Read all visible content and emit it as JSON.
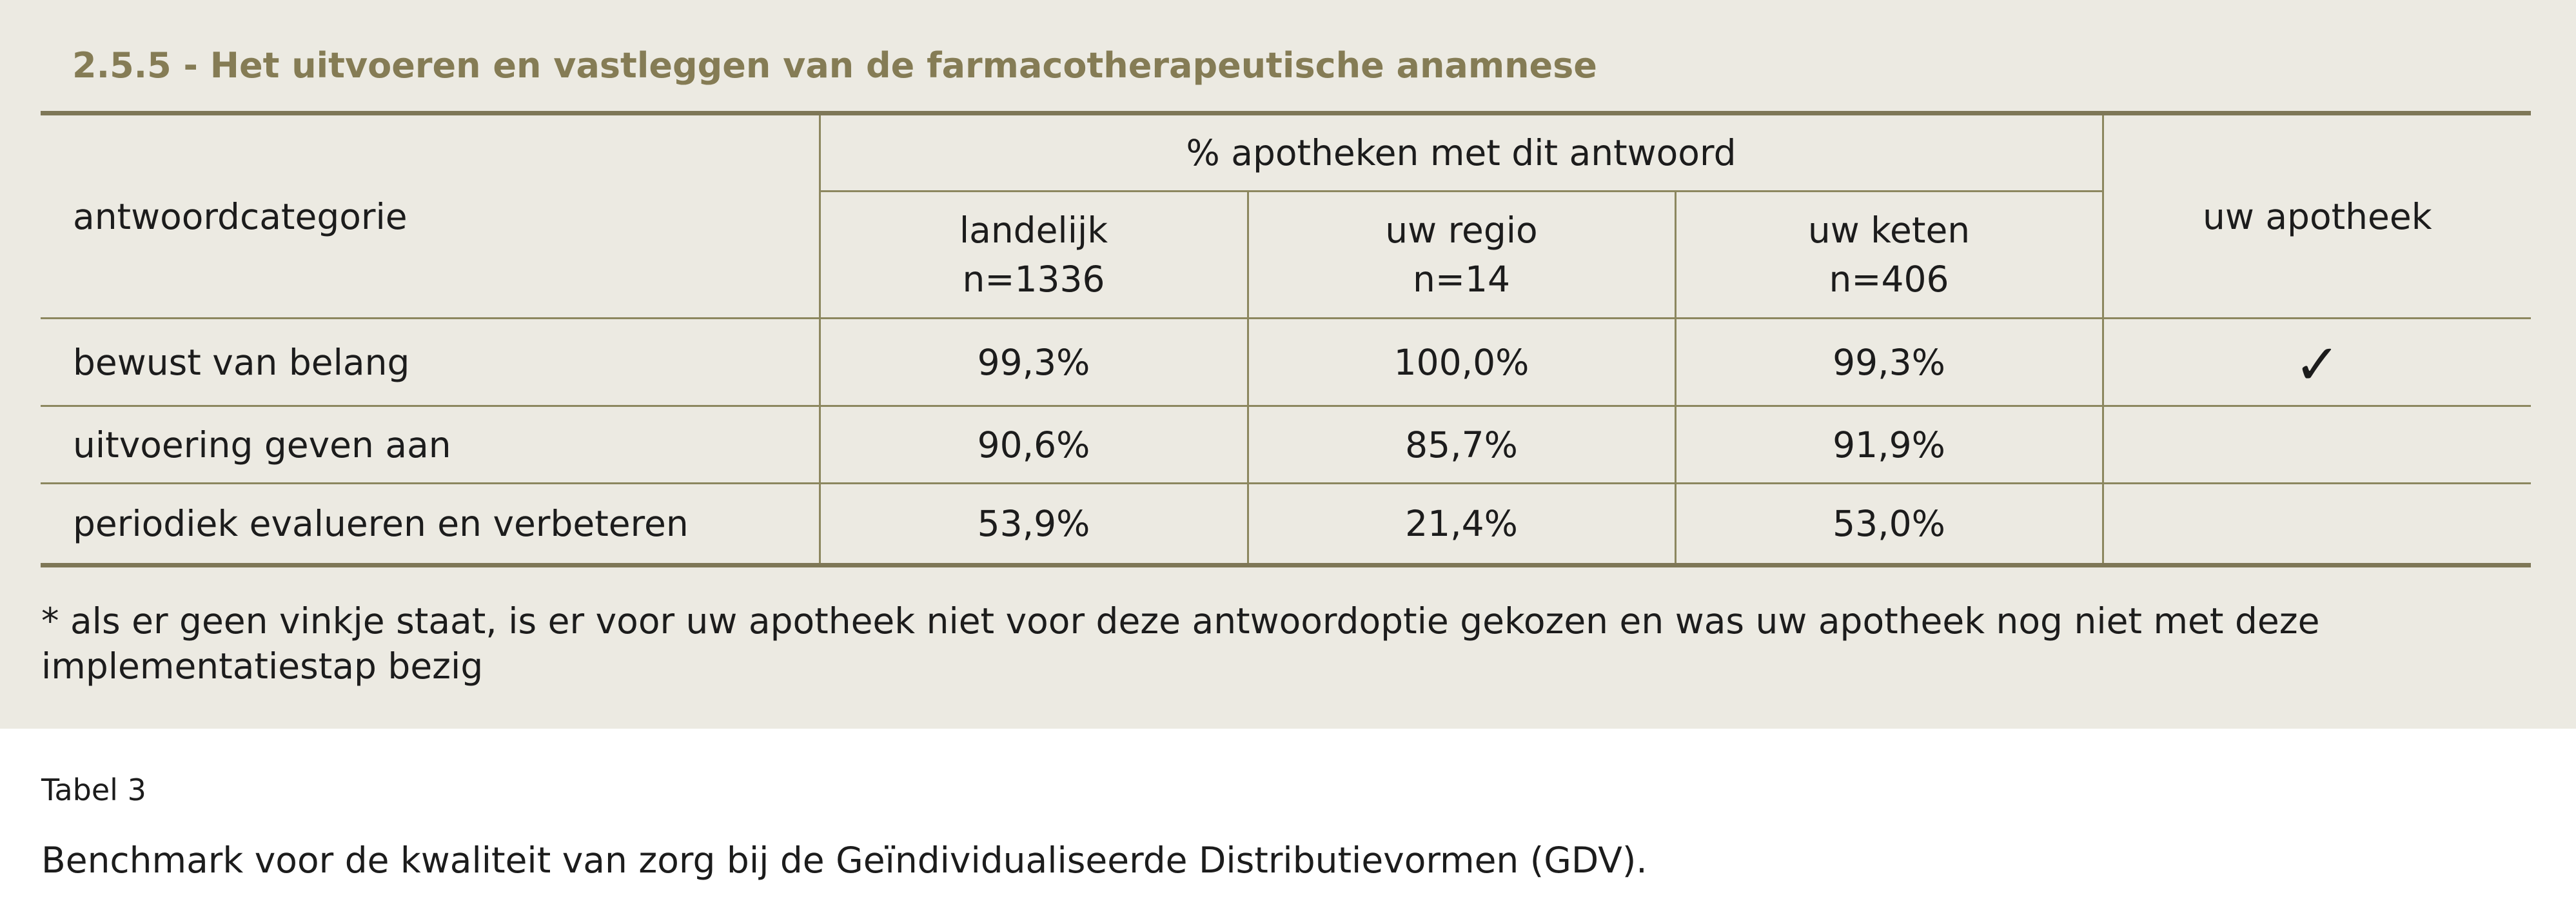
{
  "section": {
    "title": "2.5.5 - Het uitvoeren en vastleggen van de farmacotherapeutische anamnese"
  },
  "table": {
    "category_header": "antwoordcategorie",
    "group_header": "% apotheken met dit antwoord",
    "columns": [
      {
        "label": "landelijk",
        "n": "n=1336"
      },
      {
        "label": "uw regio",
        "n": "n=14"
      },
      {
        "label": "uw keten",
        "n": "n=406"
      }
    ],
    "pharmacy_header": "uw apotheek",
    "rows": [
      {
        "category": "bewust van belang",
        "landelijk": "99,3%",
        "regio": "100,0%",
        "keten": "99,3%",
        "apotheek": "✓"
      },
      {
        "category": "uitvoering geven aan",
        "landelijk": "90,6%",
        "regio": "85,7%",
        "keten": "91,9%",
        "apotheek": ""
      },
      {
        "category": "periodiek evalueren en verbeteren",
        "landelijk": "53,9%",
        "regio": "21,4%",
        "keten": "53,0%",
        "apotheek": ""
      }
    ]
  },
  "footnote": "* als er geen vinkje staat, is er voor uw apotheek niet voor deze antwoordoptie gekozen en was uw apotheek nog niet met deze implementatiestap bezig",
  "caption": {
    "label": "Tabel 3",
    "text": "Benchmark voor de kwaliteit van zorg bij de Geïndividualiseerde Distributievormen (GDV)."
  }
}
